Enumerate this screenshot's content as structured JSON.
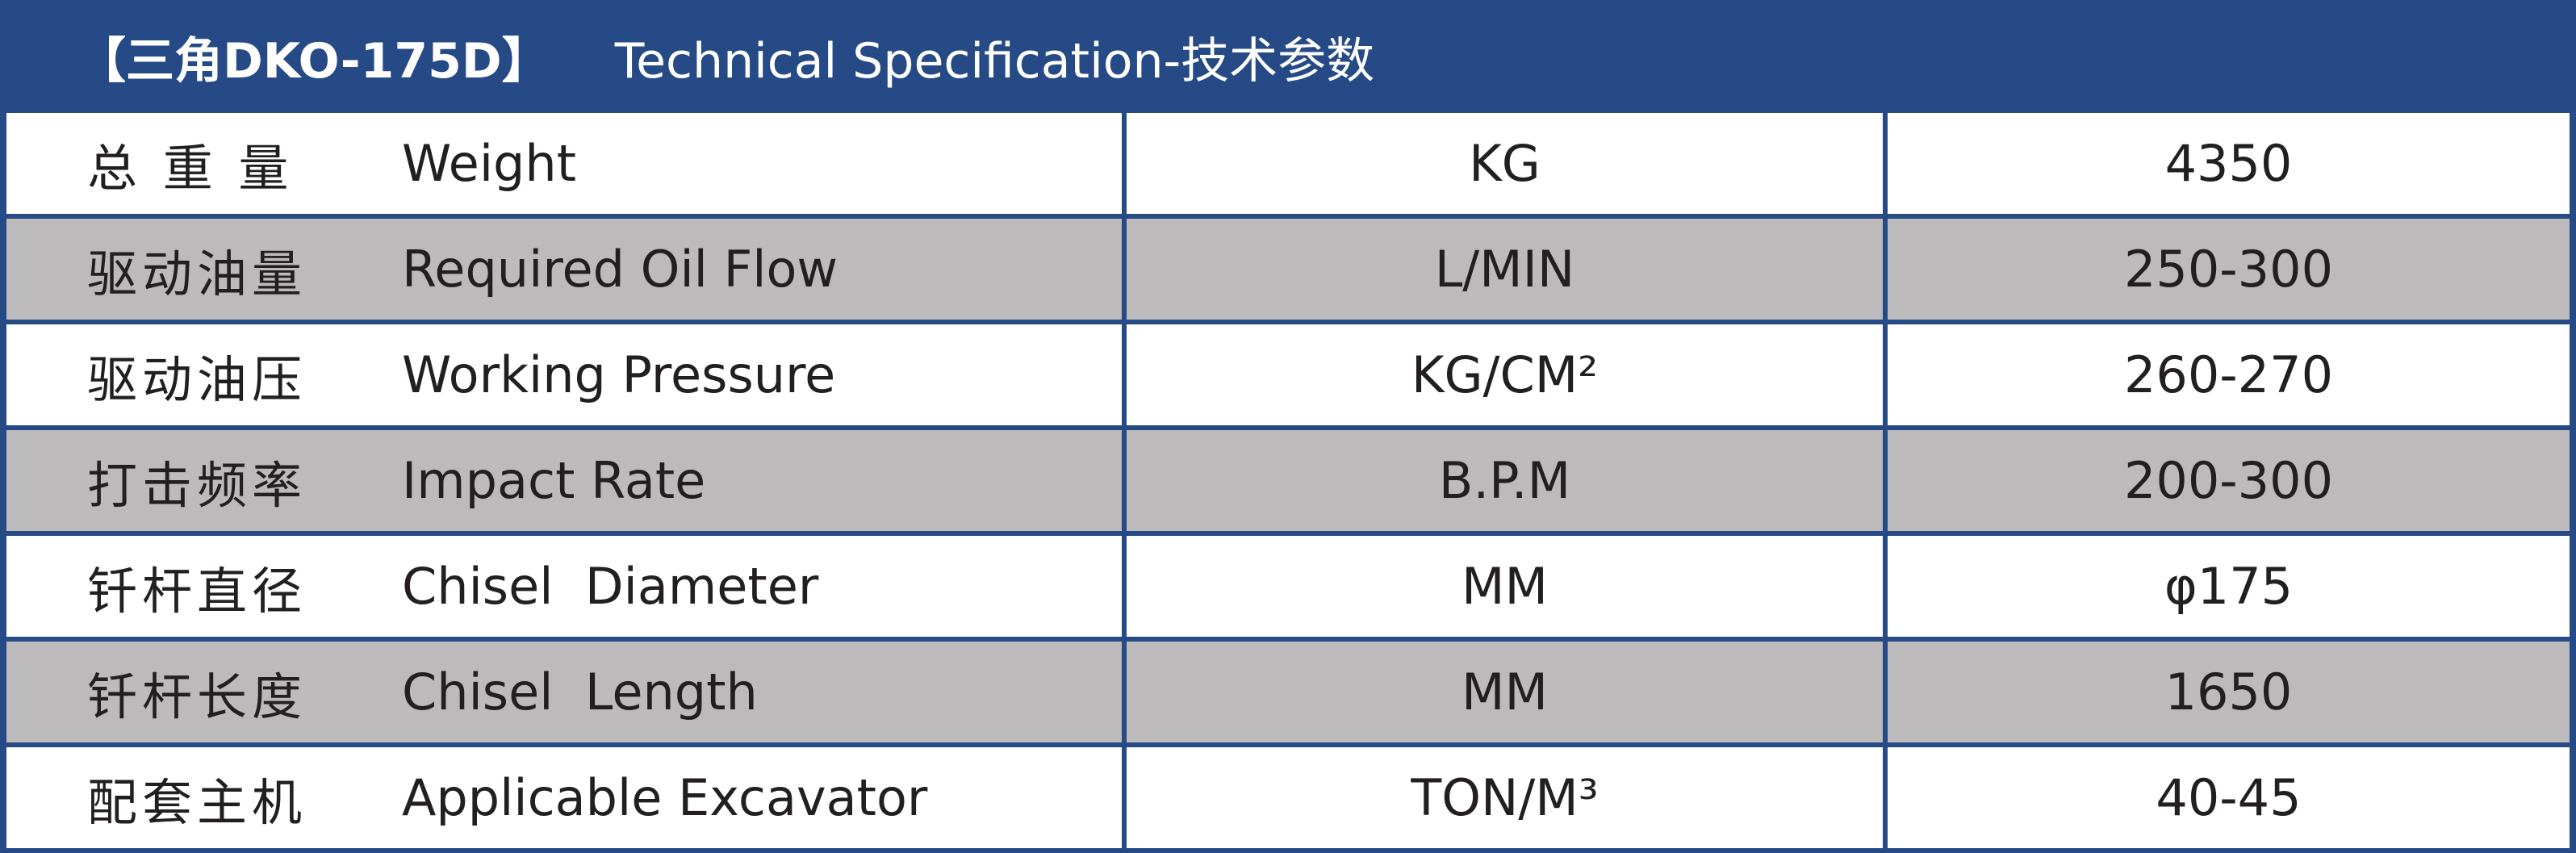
{
  "header": {
    "model": "【三角DKO-175D】",
    "title": "Technical Specification-技术参数"
  },
  "colors": {
    "header_bg": "#264a85",
    "row_gray": "#bcbabb",
    "row_white": "#ffffff"
  },
  "rows": [
    {
      "zh": "总 重 量",
      "en": "Weight",
      "unit": "KG",
      "value": "4350"
    },
    {
      "zh": "驱动油量",
      "en": "Required Oil Flow",
      "unit": "L/MIN",
      "value": "250-300"
    },
    {
      "zh": "驱动油压",
      "en": "Working Pressure",
      "unit": "KG/CM²",
      "value": "260-270"
    },
    {
      "zh": "打击频率",
      "en": "Impact Rate",
      "unit": "B.P.M",
      "value": "200-300"
    },
    {
      "zh": "钎杆直径",
      "en": "Chisel  Diameter",
      "unit": "MM",
      "value": "φ175"
    },
    {
      "zh": "钎杆长度",
      "en": "Chisel  Length",
      "unit": "MM",
      "value": "1650"
    },
    {
      "zh": "配套主机",
      "en": "Applicable Excavator",
      "unit": "TON/M³",
      "value": "40-45"
    }
  ]
}
